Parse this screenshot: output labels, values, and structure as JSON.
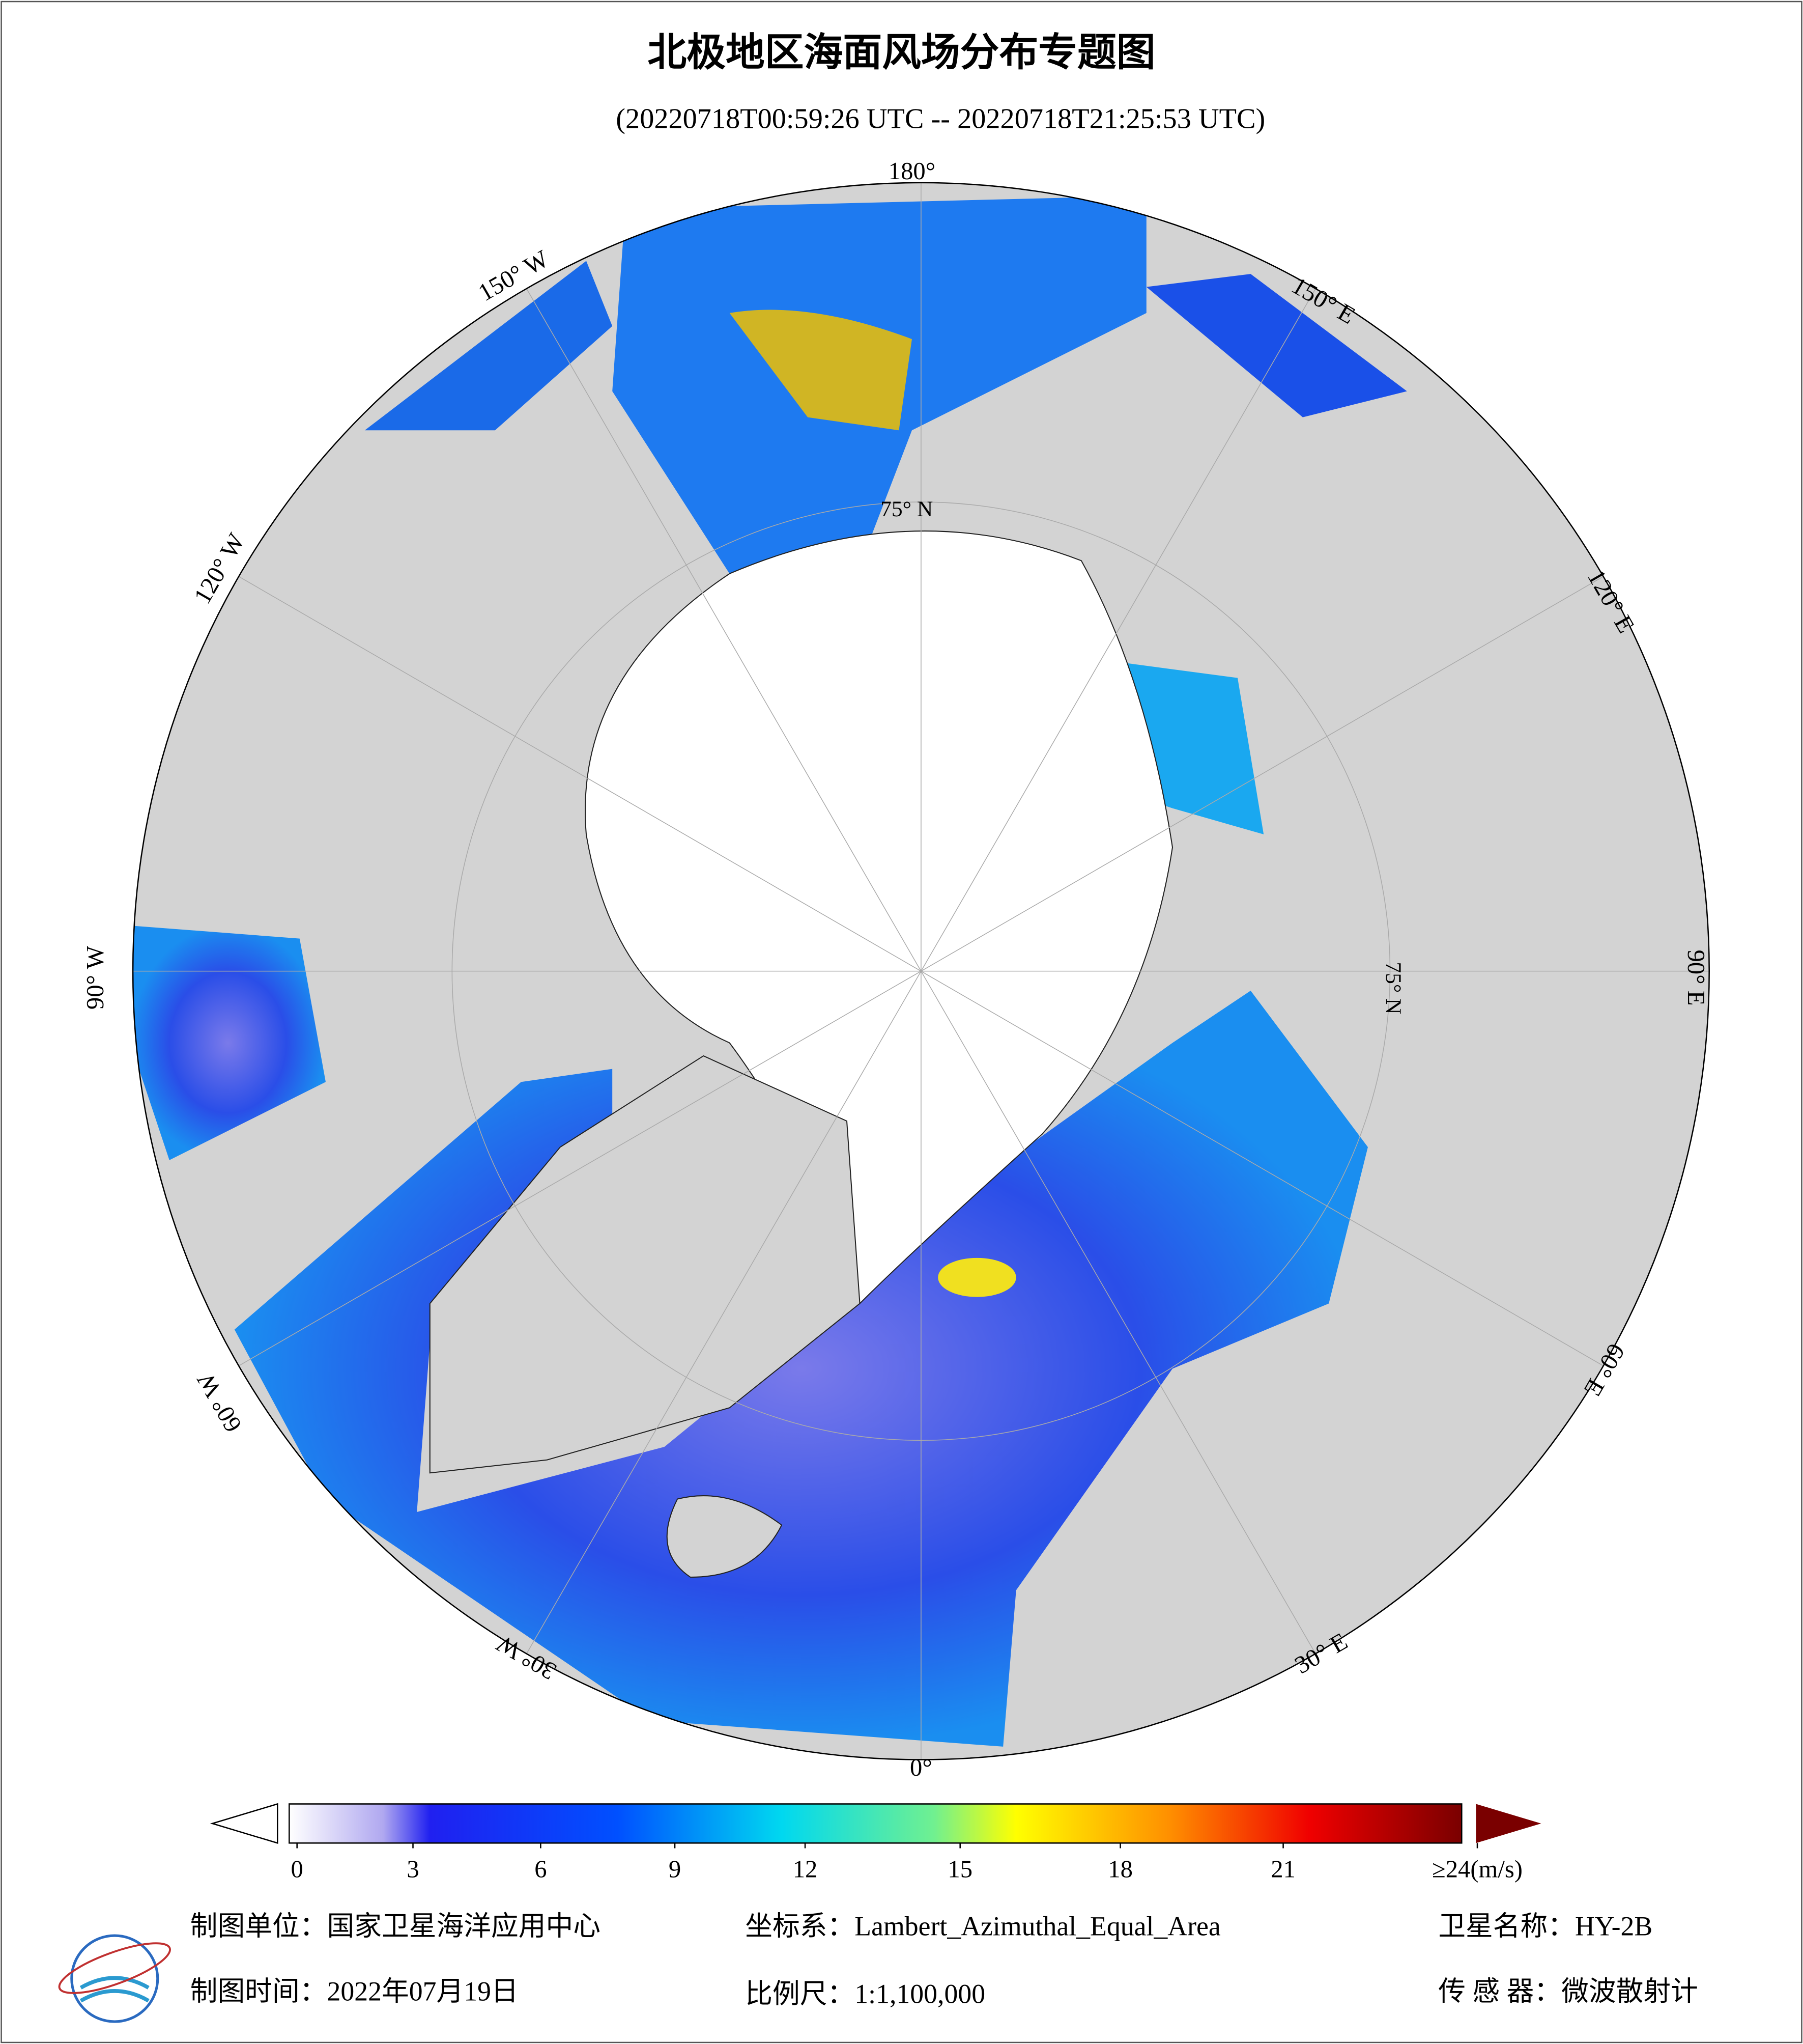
{
  "title": "北极地区海面风场分布专题图",
  "subtitle": "(20220718T00:59:26 UTC -- 20220718T21:25:53 UTC)",
  "longitude_labels": [
    "180°",
    "150° E",
    "120° E",
    "90° E",
    "60° E",
    "30° E",
    "0°",
    "30° W",
    "60° W",
    "90° W",
    "120° W",
    "150° W"
  ],
  "latitude_label": "75° N",
  "colorbar": {
    "ticks": [
      0,
      3,
      6,
      9,
      12,
      15,
      18,
      21,
      {
        "value": 24,
        "label": "≥24(m/s)"
      }
    ]
  },
  "footer": {
    "unit": "制图单位：国家卫星海洋应用中心",
    "projection": "坐标系：Lambert_Azimuthal_Equal_Area",
    "satellite": "卫星名称：HY-2B",
    "date": "制图时间：2022年07月19日",
    "scale": "比例尺：1:1,100,000",
    "sensor": "传 感 器：微波散射计"
  }
}
